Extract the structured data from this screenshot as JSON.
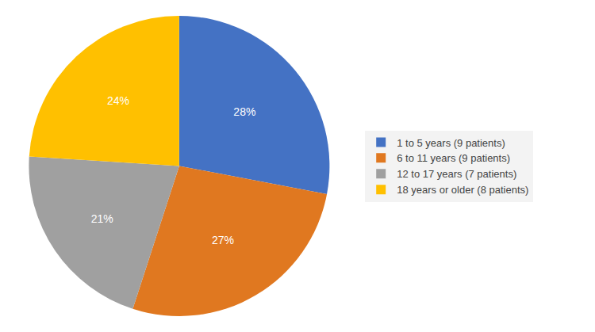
{
  "chart_data": {
    "type": "pie",
    "categories": [
      "1 to 5 years (9 patients)",
      "6 to 11 years (9 patients)",
      "12 to 17 years (7 patients)",
      "18 years or older (8 patients)"
    ],
    "values": [
      28,
      27,
      21,
      24
    ],
    "value_labels": [
      "28%",
      "27%",
      "21%",
      "24%"
    ],
    "colors": [
      "#4472C4",
      "#E07820",
      "#A0A0A0",
      "#FFC000"
    ],
    "data_labels": true,
    "legend": "right"
  }
}
